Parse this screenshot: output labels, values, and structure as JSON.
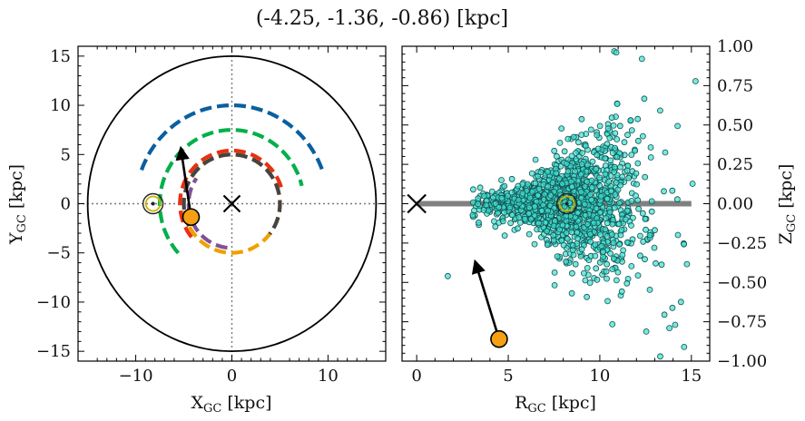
{
  "chart_data": [
    {
      "type": "line",
      "panel": "left",
      "title": "(-4.25, -1.36, -0.86) [kpc]",
      "xlabel": "X",
      "xlabel_sub": "GC",
      "xlabel_unit": " [kpc]",
      "ylabel": "Y",
      "ylabel_sub": "GC",
      "ylabel_unit": " [kpc]",
      "xlim": [
        -16,
        16
      ],
      "ylim": [
        -16,
        16
      ],
      "xticks": [
        -10,
        0,
        10
      ],
      "yticks": [
        -15,
        -10,
        -5,
        0,
        5,
        10,
        15
      ],
      "xtick_labels": [
        "−10",
        "0",
        "10"
      ],
      "ytick_labels": [
        "−15",
        "−10",
        "−5",
        "0",
        "5",
        "10",
        "15"
      ],
      "boundary_circle_radius": 15,
      "spiral_arms": [
        {
          "color": "#0a5fa0",
          "radius": 10,
          "start_deg": 160,
          "end_deg": 19
        },
        {
          "color": "#00b04a",
          "radius": 7.5,
          "start_deg": 222,
          "end_deg": 14
        },
        {
          "color": "#f0a000",
          "radius": 5,
          "start_deg": 147,
          "end_deg": 178
        },
        {
          "color": "#e83010",
          "radius": 5.4,
          "start_deg": 219,
          "end_deg": 17
        },
        {
          "color": "#805098",
          "radius": 4.5,
          "start_deg": 264,
          "end_deg": 145
        },
        {
          "color": "#444444",
          "radius": 5,
          "start_deg": 207,
          "end_deg": 322,
          "center": [
            0,
            0
          ]
        }
      ],
      "sun": {
        "x": -8.2,
        "y": 0.0
      },
      "galactic_center": {
        "x": 0,
        "y": 0
      },
      "object": {
        "x": -4.25,
        "y": -1.36,
        "color": "#f5a012"
      },
      "velocity_arrow": {
        "from": [
          -4.25,
          -1.36
        ],
        "to": [
          -5.3,
          5.6
        ]
      }
    },
    {
      "type": "scatter",
      "panel": "right",
      "xlabel": "R",
      "xlabel_sub": "GC",
      "xlabel_unit": " [kpc]",
      "ylabel": "Z",
      "ylabel_sub": "GC",
      "ylabel_unit": " [kpc]",
      "xlim": [
        -0.8,
        16
      ],
      "ylim": [
        -1.0,
        1.0
      ],
      "xticks": [
        0,
        5,
        10,
        15
      ],
      "yticks": [
        -1.0,
        -0.75,
        -0.5,
        -0.25,
        0.0,
        0.25,
        0.5,
        0.75,
        1.0
      ],
      "xtick_labels": [
        "0",
        "5",
        "10",
        "15"
      ],
      "ytick_labels": [
        "−1.00",
        "−0.75",
        "−0.50",
        "−0.25",
        "0.00",
        "0.25",
        "0.50",
        "0.75",
        "1.00"
      ],
      "disk_line": {
        "x": [
          0,
          15
        ],
        "y": 0,
        "color": "#808080"
      },
      "point_color": "#3de0d0",
      "point_count_estimate": 1400,
      "point_distribution": {
        "r_center": 8.2,
        "r_spread": 2.3,
        "z_spread_base": 0.06,
        "z_spread_growth": 0.045,
        "outliers": [
          [
            1.7,
            -0.46
          ],
          [
            10.9,
            0.96
          ],
          [
            12.3,
            0.92
          ],
          [
            13.8,
            -0.79
          ],
          [
            14.6,
            -0.91
          ],
          [
            13.3,
            -0.97
          ]
        ]
      },
      "sun": {
        "x": 8.2,
        "y": 0.0
      },
      "galactic_center": {
        "x": 0,
        "y": 0
      },
      "object": {
        "x": 4.5,
        "y": -0.86,
        "color": "#f5a012"
      },
      "velocity_arrow": {
        "from": [
          4.5,
          -0.86
        ],
        "to": [
          3.2,
          -0.37
        ]
      }
    }
  ]
}
